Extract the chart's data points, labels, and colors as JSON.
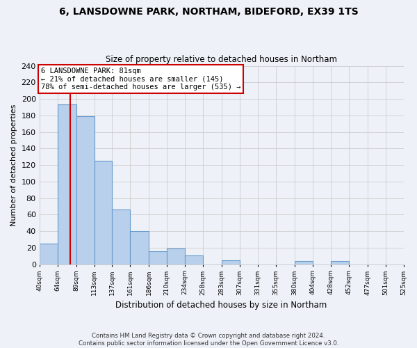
{
  "title": "6, LANSDOWNE PARK, NORTHAM, BIDEFORD, EX39 1TS",
  "subtitle": "Size of property relative to detached houses in Northam",
  "xlabel": "Distribution of detached houses by size in Northam",
  "ylabel": "Number of detached properties",
  "bar_left_edges": [
    40,
    64,
    89,
    113,
    137,
    161,
    186,
    210,
    234,
    258,
    283,
    307,
    331,
    355,
    380,
    404,
    428,
    452,
    477,
    501
  ],
  "bar_heights": [
    25,
    193,
    179,
    125,
    66,
    40,
    16,
    19,
    11,
    0,
    5,
    0,
    0,
    0,
    4,
    0,
    4,
    0,
    0,
    0
  ],
  "bar_widths": [
    24,
    25,
    24,
    24,
    24,
    25,
    24,
    24,
    24,
    25,
    24,
    24,
    24,
    25,
    24,
    24,
    24,
    25,
    24,
    24
  ],
  "bar_color": "#b8d0eb",
  "bar_edgecolor": "#6699cc",
  "grid_color": "#cccccc",
  "background_color": "#eef2f8",
  "property_x": 81,
  "property_line_color": "#cc0000",
  "annotation_line1": "6 LANSDOWNE PARK: 81sqm",
  "annotation_line2": "← 21% of detached houses are smaller (145)",
  "annotation_line3": "78% of semi-detached houses are larger (535) →",
  "annotation_box_color": "#ffffff",
  "annotation_box_edgecolor": "#cc0000",
  "xlim": [
    40,
    525
  ],
  "ylim": [
    0,
    240
  ],
  "yticks": [
    0,
    20,
    40,
    60,
    80,
    100,
    120,
    140,
    160,
    180,
    200,
    220,
    240
  ],
  "xtick_labels": [
    "40sqm",
    "64sqm",
    "89sqm",
    "113sqm",
    "137sqm",
    "161sqm",
    "186sqm",
    "210sqm",
    "234sqm",
    "258sqm",
    "283sqm",
    "307sqm",
    "331sqm",
    "355sqm",
    "380sqm",
    "404sqm",
    "428sqm",
    "452sqm",
    "477sqm",
    "501sqm",
    "525sqm"
  ],
  "xtick_positions": [
    40,
    64,
    89,
    113,
    137,
    161,
    186,
    210,
    234,
    258,
    283,
    307,
    331,
    355,
    380,
    404,
    428,
    452,
    477,
    501,
    525
  ],
  "footer_line1": "Contains HM Land Registry data © Crown copyright and database right 2024.",
  "footer_line2": "Contains public sector information licensed under the Open Government Licence v3.0."
}
